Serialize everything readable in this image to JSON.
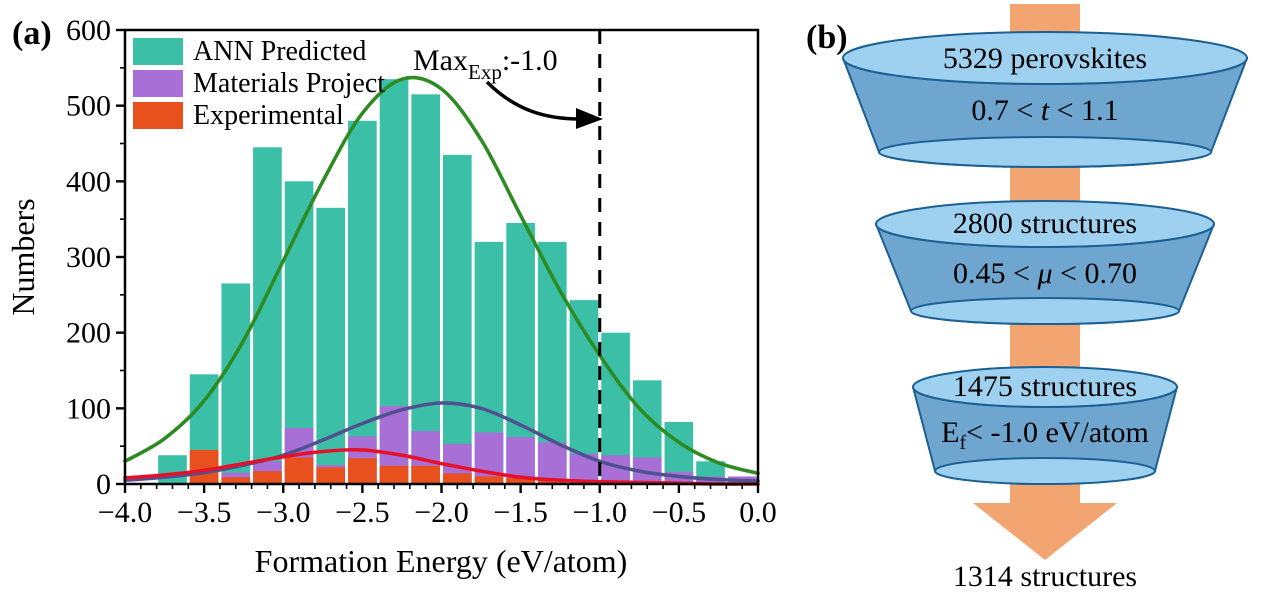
{
  "figure": {
    "panel_a": {
      "label": "(a)",
      "annotation": {
        "main": "Max",
        "sub": "Exp",
        "rest": ":-1.0"
      }
    },
    "panel_b": {
      "label": "(b)"
    }
  },
  "chart_data": [
    {
      "type": "bar",
      "subtype": "overlaid-histogram",
      "title": "",
      "xlabel": "Formation Energy (eV/atom)",
      "ylabel": "Numbers",
      "xlim": [
        -4.0,
        0.0
      ],
      "ylim": [
        0,
        600
      ],
      "grid": false,
      "legend_position": "top-left",
      "x_ticks": [
        -4.0,
        -3.5,
        -3.0,
        -2.5,
        -2.0,
        -1.5,
        -1.0,
        -0.5,
        0.0
      ],
      "x_tick_labels": [
        "−4.0",
        "−3.5",
        "−3.0",
        "−2.5",
        "−2.0",
        "−1.5",
        "−1.0",
        "−0.5",
        "0.0"
      ],
      "x_minor_step": 0.1,
      "y_ticks": [
        0,
        100,
        200,
        300,
        400,
        500,
        600
      ],
      "y_tick_labels": [
        "0",
        "100",
        "200",
        "300",
        "400",
        "500",
        "600"
      ],
      "y_minor_step": 50,
      "bin_width": 0.2,
      "bin_centers": [
        -3.7,
        -3.5,
        -3.3,
        -3.1,
        -2.9,
        -2.7,
        -2.5,
        -2.3,
        -2.1,
        -1.9,
        -1.7,
        -1.5,
        -1.3,
        -1.1,
        -0.9,
        -0.7,
        -0.5,
        -0.3,
        -0.1
      ],
      "series": [
        {
          "name": "ANN  Predicted",
          "color": "#3bbfa7",
          "values": [
            38,
            145,
            265,
            445,
            400,
            365,
            480,
            535,
            515,
            435,
            320,
            345,
            320,
            243,
            200,
            137,
            82,
            30,
            8
          ]
        },
        {
          "name": "Materials Project",
          "color": "#a86fd6",
          "values": [
            0,
            0,
            15,
            30,
            74,
            25,
            63,
            103,
            70,
            53,
            68,
            62,
            55,
            40,
            38,
            35,
            16,
            10,
            10
          ]
        },
        {
          "name": "Experimental",
          "color": "#e8511d",
          "values": [
            0,
            45,
            9,
            17,
            35,
            22,
            34,
            24,
            24,
            14,
            10,
            8,
            5,
            3,
            2,
            0,
            0,
            0,
            0
          ]
        }
      ],
      "curves": [
        {
          "name": "ANN Predicted fit",
          "color": "#2e8b22",
          "points": [
            [
              -4,
              30
            ],
            [
              -3.75,
              60
            ],
            [
              -3.5,
              110
            ],
            [
              -3.25,
              190
            ],
            [
              -3,
              295
            ],
            [
              -2.75,
              400
            ],
            [
              -2.5,
              490
            ],
            [
              -2.25,
              535
            ],
            [
              -2,
              522
            ],
            [
              -1.75,
              455
            ],
            [
              -1.5,
              355
            ],
            [
              -1.25,
              255
            ],
            [
              -1,
              170
            ],
            [
              -0.75,
              100
            ],
            [
              -0.5,
              55
            ],
            [
              -0.25,
              28
            ],
            [
              0,
              14
            ]
          ]
        },
        {
          "name": "Materials Project fit",
          "color": "#4f528e",
          "points": [
            [
              -4,
              5
            ],
            [
              -3.75,
              9
            ],
            [
              -3.5,
              15
            ],
            [
              -3.25,
              25
            ],
            [
              -3,
              38
            ],
            [
              -2.75,
              58
            ],
            [
              -2.5,
              80
            ],
            [
              -2.25,
              98
            ],
            [
              -2,
              107
            ],
            [
              -1.75,
              100
            ],
            [
              -1.5,
              78
            ],
            [
              -1.25,
              52
            ],
            [
              -1,
              30
            ],
            [
              -0.75,
              17
            ],
            [
              -0.5,
              10
            ],
            [
              -0.25,
              6
            ],
            [
              0,
              4
            ]
          ]
        },
        {
          "name": "Experimental fit",
          "color": "#e5112a",
          "points": [
            [
              -4,
              8
            ],
            [
              -3.75,
              12
            ],
            [
              -3.5,
              18
            ],
            [
              -3.25,
              27
            ],
            [
              -3,
              36
            ],
            [
              -2.75,
              43
            ],
            [
              -2.5,
              45
            ],
            [
              -2.25,
              38
            ],
            [
              -2,
              27
            ],
            [
              -1.75,
              17
            ],
            [
              -1.5,
              9
            ],
            [
              -1.25,
              5
            ],
            [
              -1,
              3
            ],
            [
              -0.75,
              2
            ],
            [
              -0.5,
              1
            ],
            [
              -0.25,
              0
            ],
            [
              0,
              0
            ]
          ]
        }
      ],
      "vline": {
        "x": -1.0,
        "style": "dashed",
        "color": "#000000",
        "label": "Max_Exp : -1.0"
      }
    },
    {
      "type": "funnel",
      "stages": [
        {
          "count": "5329 perovskites",
          "criterion": {
            "pre": "0.7 < ",
            "var": "t",
            "post": " < 1.1"
          }
        },
        {
          "count": "2800 structures",
          "criterion": {
            "pre": "0.45 < ",
            "var": "μ",
            "post": " < 0.70"
          }
        },
        {
          "count": "1475 structures",
          "criterion": {
            "pre": "E",
            "sub": "f",
            "post": "< -1.0 eV/atom"
          }
        }
      ],
      "result": "1314 structures",
      "colors": {
        "ellipse_fill": "#9dd1ef",
        "body_fill": "#6fa6d0",
        "outline": "#1c6094",
        "arrow": "#f2a571",
        "text": "#141438"
      }
    }
  ]
}
